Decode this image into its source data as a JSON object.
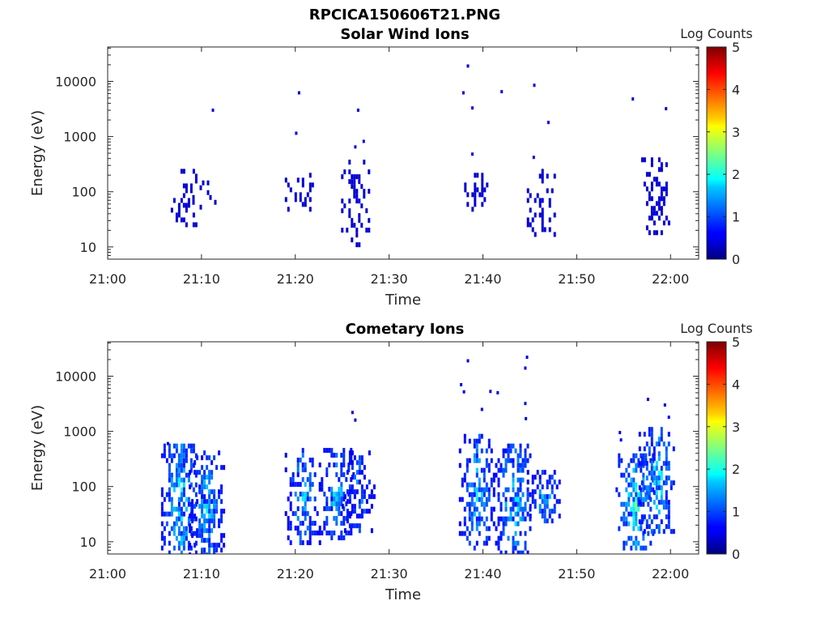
{
  "figure": {
    "title": "RPCICA150606T21.PNG"
  },
  "colorbar": {
    "label": "Log Counts",
    "min": 0,
    "max": 5,
    "ticks": [
      0,
      1,
      2,
      3,
      4,
      5
    ],
    "colormap": "jet"
  },
  "chart_data": [
    {
      "type": "heatmap",
      "title": "Solar Wind Ions",
      "xlabel": "Time",
      "ylabel": "Energy (eV)",
      "y_scale": "log",
      "xlim": [
        "21:00",
        "22:03"
      ],
      "ylim": [
        6,
        42000
      ],
      "xticks": [
        "21:00",
        "21:10",
        "21:20",
        "21:30",
        "21:40",
        "21:50",
        "22:00"
      ],
      "yticks": [
        "10",
        "100",
        "1000",
        "10000"
      ],
      "grid": false,
      "blobs": [
        {
          "t": 21.133,
          "emin": 25,
          "emax": 260,
          "intensity": 0.1,
          "density": 0.45
        },
        {
          "t": 21.167,
          "emin": 40,
          "emax": 160,
          "intensity": 0.1,
          "density": 0.3
        },
        {
          "t": 21.34,
          "emin": 45,
          "emax": 220,
          "intensity": 0.1,
          "density": 0.4
        },
        {
          "t": 21.44,
          "emin": 12,
          "emax": 380,
          "intensity": 0.1,
          "density": 0.45
        },
        {
          "t": 21.65,
          "emin": 45,
          "emax": 220,
          "intensity": 0.1,
          "density": 0.45
        },
        {
          "t": 21.77,
          "emin": 18,
          "emax": 260,
          "intensity": 0.1,
          "density": 0.35
        },
        {
          "t": 21.973,
          "emin": 20,
          "emax": 420,
          "intensity": 0.1,
          "density": 0.55
        }
      ],
      "points": [
        {
          "t": 21.187,
          "e": 3000,
          "v": 0.1
        },
        {
          "t": 21.34,
          "e": 6200,
          "v": 0.1
        },
        {
          "t": 21.335,
          "e": 1150,
          "v": 0.1
        },
        {
          "t": 21.445,
          "e": 3000,
          "v": 0.1
        },
        {
          "t": 21.44,
          "e": 650,
          "v": 0.1
        },
        {
          "t": 21.455,
          "e": 820,
          "v": 0.1
        },
        {
          "t": 21.64,
          "e": 19000,
          "v": 0.1
        },
        {
          "t": 21.632,
          "e": 6200,
          "v": 0.1
        },
        {
          "t": 21.648,
          "e": 3300,
          "v": 0.1
        },
        {
          "t": 21.648,
          "e": 480,
          "v": 0.1
        },
        {
          "t": 21.7,
          "e": 6500,
          "v": 0.1
        },
        {
          "t": 21.758,
          "e": 8500,
          "v": 0.1
        },
        {
          "t": 21.783,
          "e": 1800,
          "v": 0.1
        },
        {
          "t": 21.757,
          "e": 420,
          "v": 0.1
        },
        {
          "t": 21.933,
          "e": 4800,
          "v": 0.1
        },
        {
          "t": 21.992,
          "e": 3200,
          "v": 0.1
        }
      ]
    },
    {
      "type": "heatmap",
      "title": "Cometary Ions",
      "xlabel": "Time",
      "ylabel": "Energy (eV)",
      "y_scale": "log",
      "xlim": [
        "21:00",
        "22:03"
      ],
      "ylim": [
        6,
        42000
      ],
      "xticks": [
        "21:00",
        "21:10",
        "21:20",
        "21:30",
        "21:40",
        "21:50",
        "22:00"
      ],
      "yticks": [
        "10",
        "100",
        "1000",
        "10000"
      ],
      "grid": false,
      "blobs": [
        {
          "t": 21.127,
          "emin": 6,
          "emax": 600,
          "intensity": 0.4,
          "density": 0.85
        },
        {
          "t": 21.175,
          "emin": 6,
          "emax": 450,
          "intensity": 0.35,
          "density": 0.8
        },
        {
          "t": 21.345,
          "emin": 10,
          "emax": 500,
          "intensity": 0.32,
          "density": 0.65
        },
        {
          "t": 21.405,
          "emin": 12,
          "emax": 500,
          "intensity": 0.33,
          "density": 0.7
        },
        {
          "t": 21.445,
          "emin": 15,
          "emax": 450,
          "intensity": 0.28,
          "density": 0.6
        },
        {
          "t": 21.655,
          "emin": 8,
          "emax": 900,
          "intensity": 0.35,
          "density": 0.65
        },
        {
          "t": 21.72,
          "emin": 6,
          "emax": 600,
          "intensity": 0.38,
          "density": 0.75
        },
        {
          "t": 21.775,
          "emin": 25,
          "emax": 200,
          "intensity": 0.32,
          "density": 0.6
        },
        {
          "t": 21.935,
          "emin": 8,
          "emax": 400,
          "intensity": 0.42,
          "density": 0.78
        },
        {
          "t": 21.975,
          "emin": 15,
          "emax": 1200,
          "intensity": 0.38,
          "density": 0.7
        }
      ],
      "points": [
        {
          "t": 21.107,
          "e": 600,
          "v": 0.1
        },
        {
          "t": 21.435,
          "e": 2200,
          "v": 0.1
        },
        {
          "t": 21.44,
          "e": 1600,
          "v": 0.1
        },
        {
          "t": 21.64,
          "e": 19000,
          "v": 0.1
        },
        {
          "t": 21.628,
          "e": 7000,
          "v": 0.1
        },
        {
          "t": 21.633,
          "e": 5200,
          "v": 0.1
        },
        {
          "t": 21.68,
          "e": 5300,
          "v": 0.1
        },
        {
          "t": 21.693,
          "e": 5000,
          "v": 0.1
        },
        {
          "t": 21.665,
          "e": 2500,
          "v": 0.1
        },
        {
          "t": 21.745,
          "e": 22000,
          "v": 0.1
        },
        {
          "t": 21.742,
          "e": 14000,
          "v": 0.1
        },
        {
          "t": 21.742,
          "e": 3200,
          "v": 0.1
        },
        {
          "t": 21.743,
          "e": 1700,
          "v": 0.1
        },
        {
          "t": 21.96,
          "e": 3800,
          "v": 0.1
        },
        {
          "t": 21.99,
          "e": 3000,
          "v": 0.1
        },
        {
          "t": 21.997,
          "e": 1800,
          "v": 0.1
        },
        {
          "t": 21.91,
          "e": 950,
          "v": 0.1
        },
        {
          "t": 21.912,
          "e": 700,
          "v": 0.1
        }
      ]
    }
  ]
}
